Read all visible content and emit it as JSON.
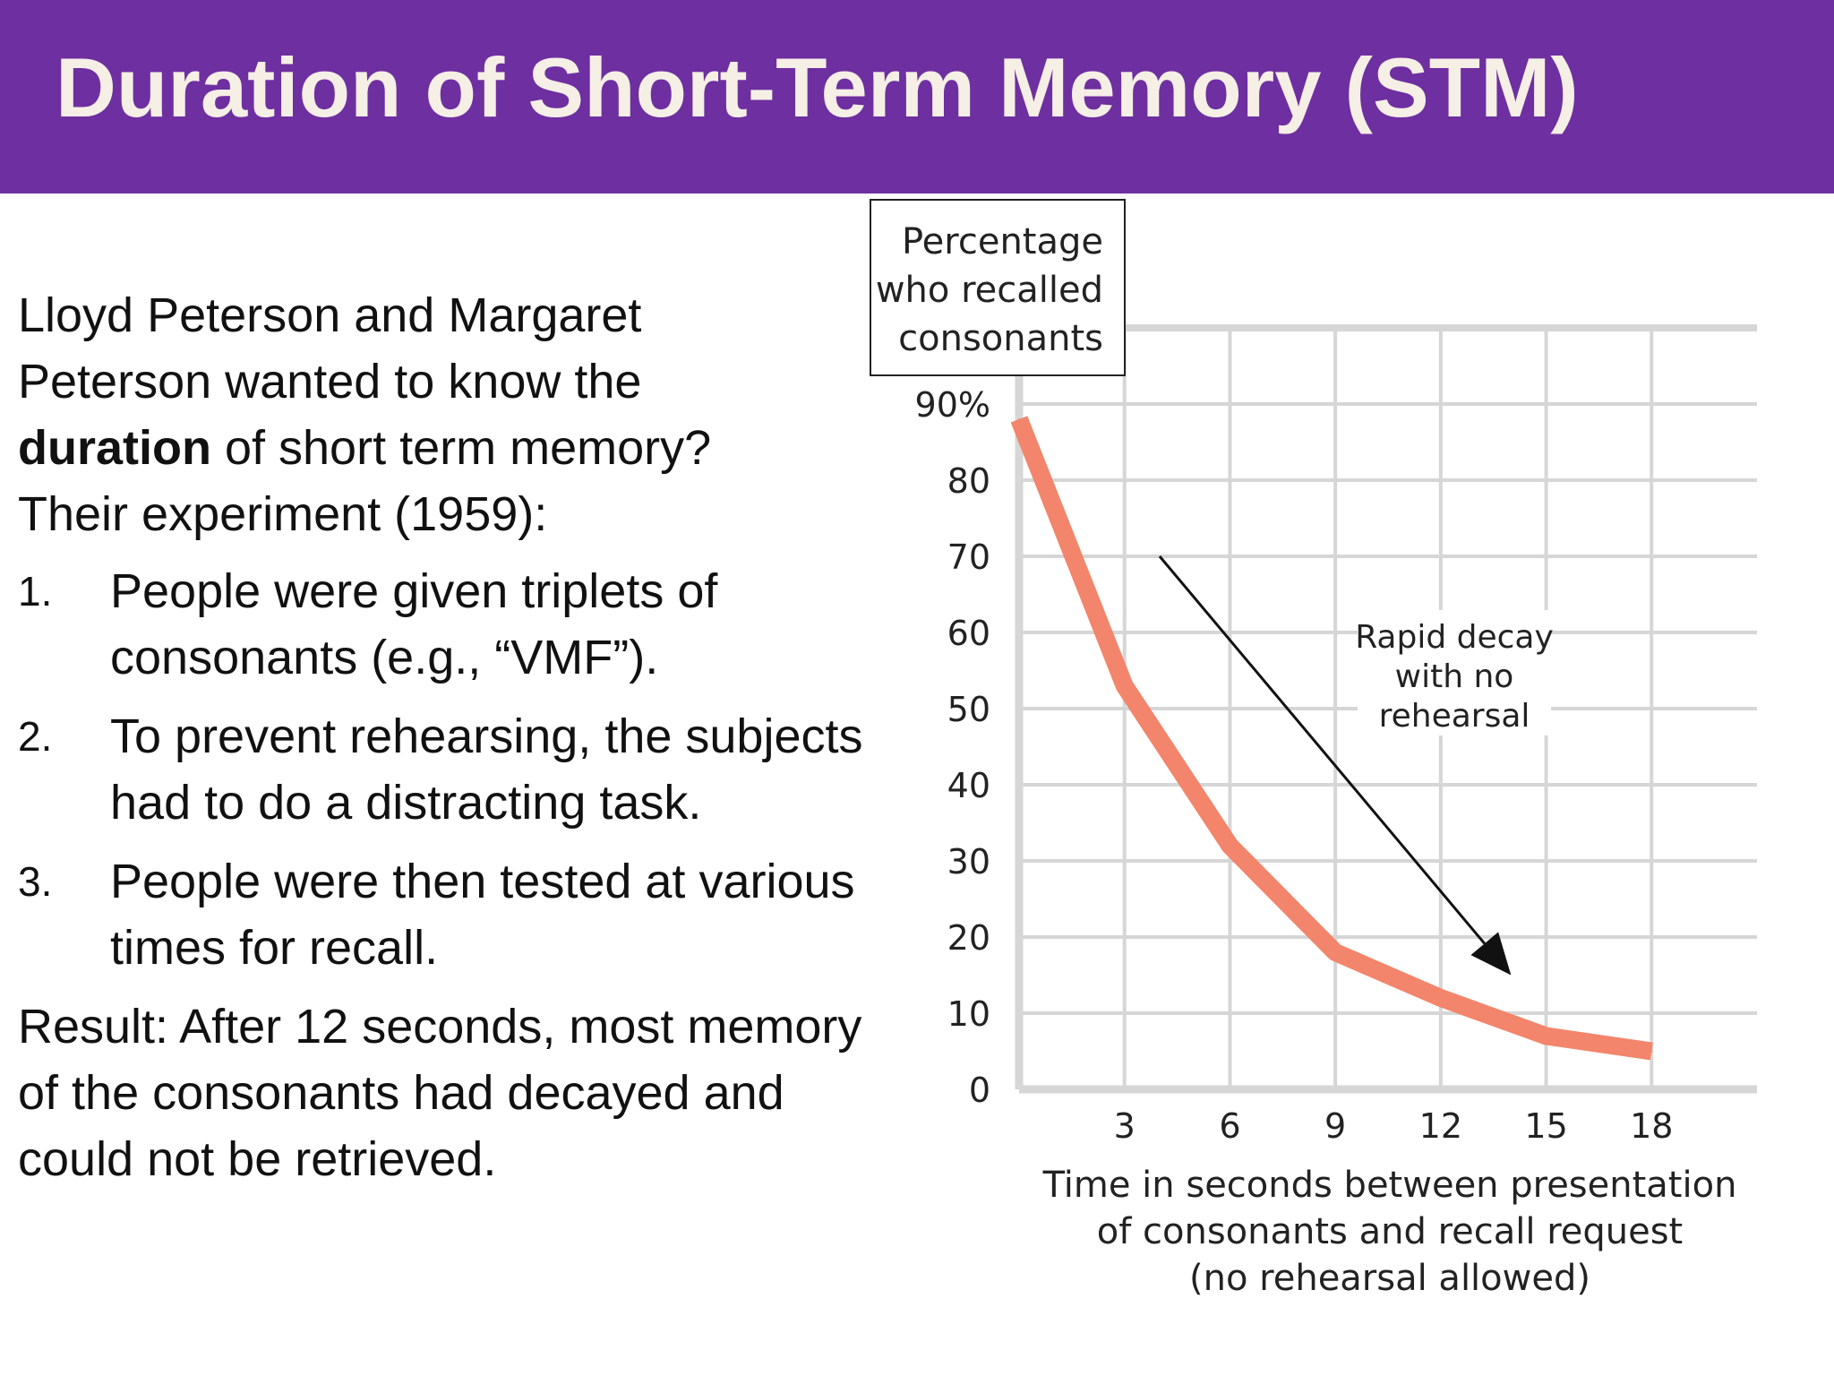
{
  "slide": {
    "title": "Duration of Short-Term Memory (STM)",
    "intro": {
      "line1": "Lloyd Peterson and Margaret",
      "line2": "Peterson wanted to know the",
      "bold": "duration",
      "line3_rest": " of short term memory?",
      "line4": "Their experiment (1959):"
    },
    "steps": [
      {
        "num": "1.",
        "text": "People were given triplets of consonants (e.g., “VMF”)."
      },
      {
        "num": "2.",
        "text": "To prevent rehearsing, the subjects had to do a distracting task."
      },
      {
        "num": "3.",
        "text": "People were then tested at various times for recall."
      }
    ],
    "result": "Result: After 12 seconds, most memory of the consonants had decayed and could not be retrieved."
  },
  "colors": {
    "header_bg": "#6e2fa0",
    "header_text": "#f5efe6",
    "curve": "#f2856b",
    "grid": "#d6d6d6"
  },
  "chart_data": {
    "type": "line",
    "ylabel_lines": [
      "Percentage",
      "who recalled",
      "consonants"
    ],
    "xlabel_lines": [
      "Time in seconds between presentation",
      "of consonants and recall request",
      "(no rehearsal allowed)"
    ],
    "x_ticks": [
      3,
      6,
      9,
      12,
      15,
      18
    ],
    "y_ticks": [
      0,
      10,
      20,
      30,
      40,
      50,
      60,
      70,
      80,
      90
    ],
    "y_tick_labels": [
      "0",
      "10",
      "20",
      "30",
      "40",
      "50",
      "60",
      "70",
      "80",
      "90%"
    ],
    "xlim": [
      0,
      21
    ],
    "ylim": [
      0,
      100
    ],
    "grid": true,
    "series": [
      {
        "x": [
          0,
          3,
          6,
          9,
          12,
          15,
          18
        ],
        "values": [
          88,
          53,
          32,
          18,
          12,
          7,
          5
        ]
      }
    ],
    "annotation": {
      "lines": [
        "Rapid decay",
        "with no",
        "rehearsal"
      ],
      "arrow_from": [
        4,
        70
      ],
      "arrow_to": [
        14,
        15
      ]
    }
  }
}
